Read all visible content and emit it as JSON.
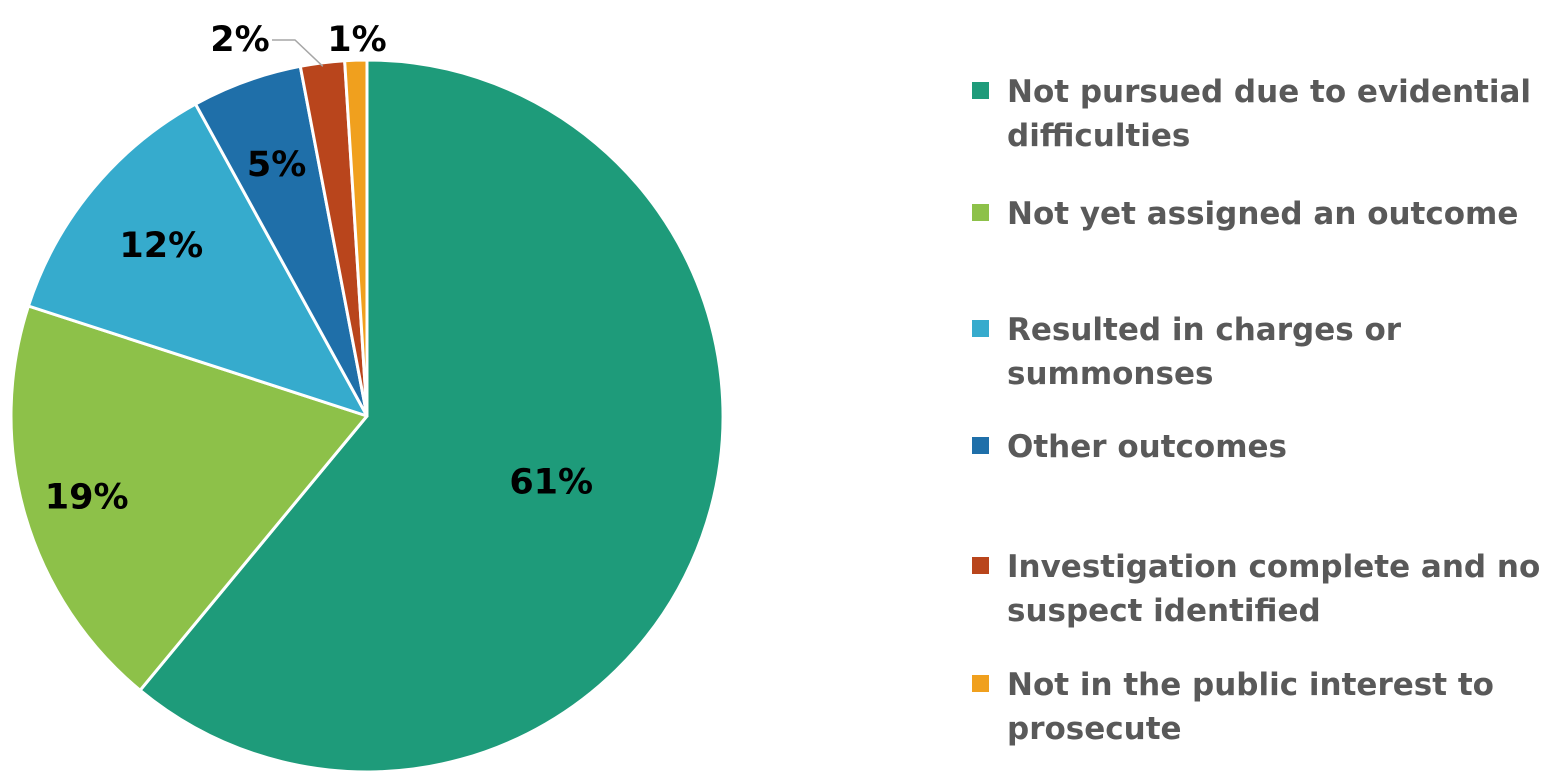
{
  "chart_data": {
    "type": "pie",
    "slices": [
      {
        "label": "Not pursued due to evidential difficulties",
        "value": 61,
        "display": "61%",
        "color": "#1e9b7a"
      },
      {
        "label": "Not yet assigned an outcome",
        "value": 19,
        "display": "19%",
        "color": "#8dc149"
      },
      {
        "label": "Resulted in charges or summonses",
        "value": 12,
        "display": "12%",
        "color": "#36abcd"
      },
      {
        "label": "Other outcomes",
        "value": 5,
        "display": "5%",
        "color": "#1f6fa9"
      },
      {
        "label": "Investigation complete and no suspect identified",
        "value": 2,
        "display": "2%",
        "color": "#b9451c"
      },
      {
        "label": "Not in the public interest to prosecute",
        "value": 1,
        "display": "1%",
        "color": "#f0a01e"
      }
    ],
    "start_angle": "top",
    "direction": "clockwise",
    "legend_position": "right"
  }
}
